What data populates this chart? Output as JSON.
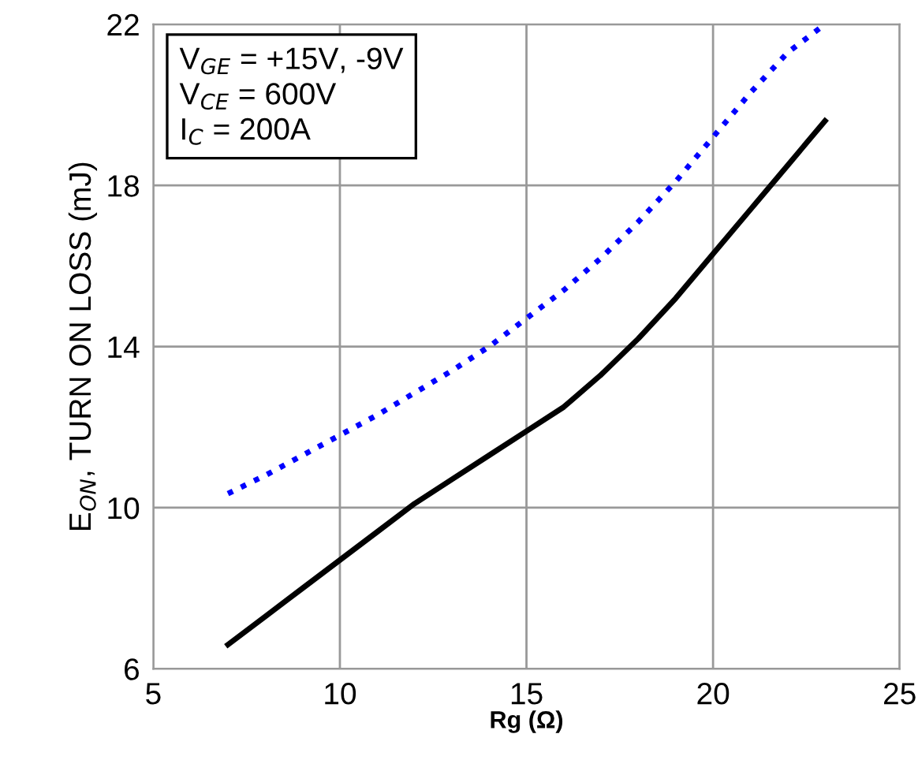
{
  "chart_data": {
    "type": "line",
    "xlabel": "Rg (Ω)",
    "ylabel": "E$_{ON}$, TURN ON LOSS (mJ)",
    "annotations": [
      "V$_{GE}$ = +15V, -9V\nV$_{CE}$ = 600V\nI$_{C}$ = 200A"
    ],
    "x": [
      7,
      8,
      9,
      10,
      11,
      12,
      13,
      14,
      15,
      16,
      17,
      18,
      19,
      20,
      21,
      22,
      23
    ],
    "series": [
      {
        "color": "#000000",
        "line_style": "solid",
        "values": [
          6.6,
          7.3,
          8.0,
          8.7,
          9.4,
          10.1,
          10.7,
          11.3,
          11.9,
          12.5,
          13.3,
          14.2,
          15.2,
          16.3,
          17.4,
          18.5,
          19.6
        ]
      },
      {
        "color": "#0000ff",
        "line_style": "dotted",
        "values": [
          10.35,
          10.8,
          11.3,
          11.8,
          12.3,
          12.85,
          13.4,
          14.0,
          14.7,
          15.4,
          16.2,
          17.1,
          18.1,
          19.2,
          20.3,
          21.3,
          22.0
        ]
      }
    ],
    "xlim": [
      5,
      25
    ],
    "xticks": [
      5,
      10,
      15,
      20,
      25
    ],
    "ylim": [
      6,
      22
    ],
    "yticks": [
      6,
      10,
      14,
      18,
      22
    ],
    "grid": true,
    "marker": "none"
  }
}
